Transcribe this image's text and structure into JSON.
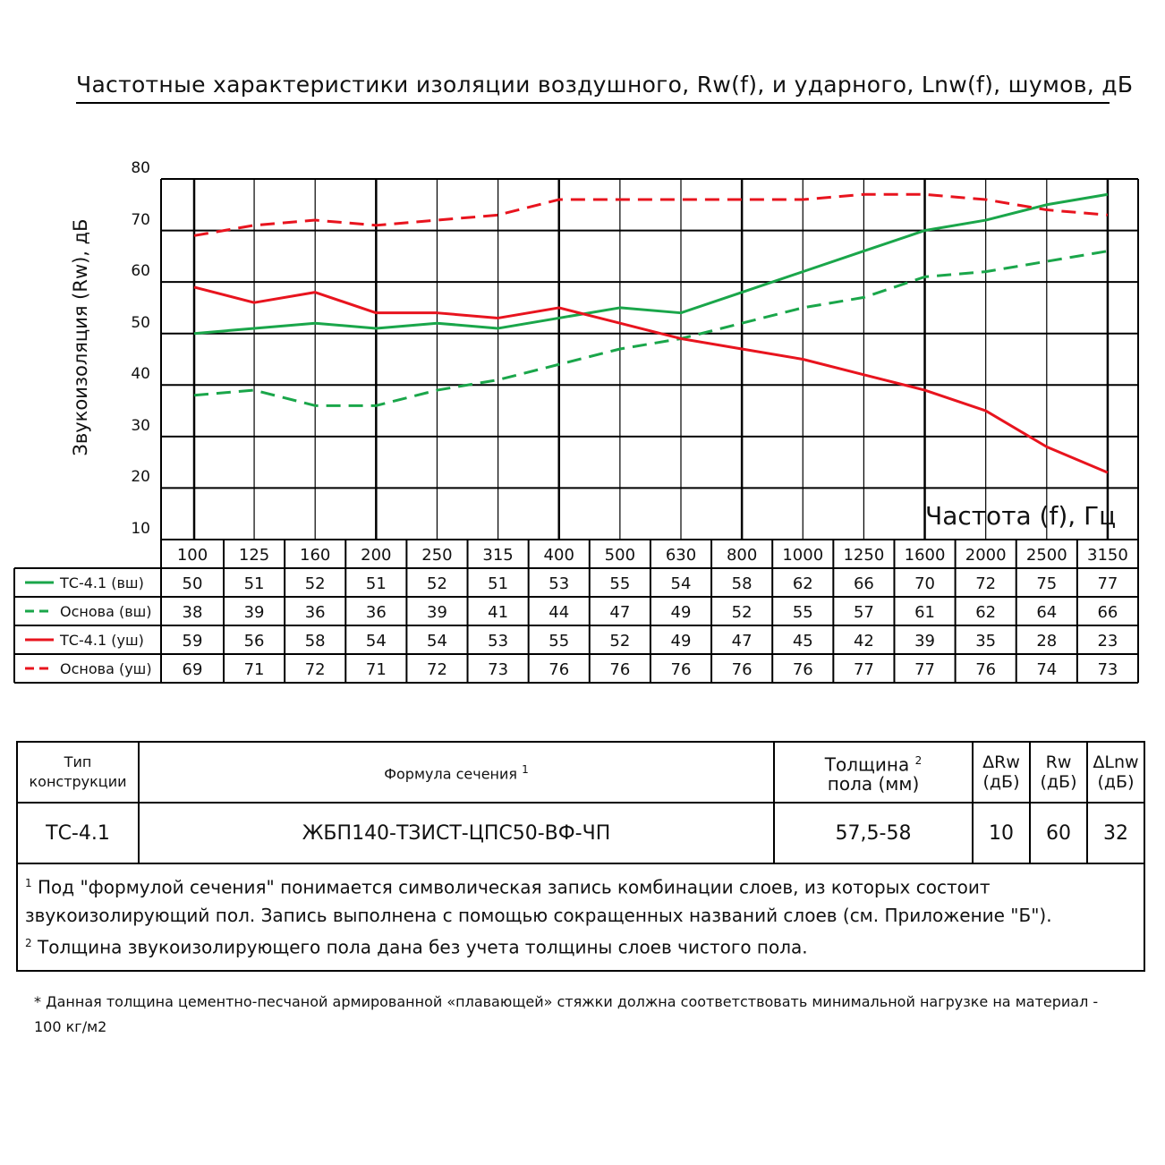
{
  "title": "Частотные характеристики изоляции воздушного, Rw(f), и ударного, Lnw(f), шумов, дБ",
  "chart_data": {
    "type": "line",
    "ylabel": "Звукоизоляция (Rw), дБ",
    "xlabel": "Частота (f), Гц",
    "ylim": [
      10,
      80
    ],
    "yticks": [
      10,
      20,
      30,
      40,
      50,
      60,
      70,
      80
    ],
    "grid": true,
    "categories": [
      "100",
      "125",
      "160",
      "200",
      "250",
      "315",
      "400",
      "500",
      "630",
      "800",
      "1000",
      "1250",
      "1600",
      "2000",
      "2500",
      "3150"
    ],
    "series": [
      {
        "name": "ТС-4.1 (вш)",
        "color": "#1aa64a",
        "dash": false,
        "values": [
          50,
          51,
          52,
          51,
          52,
          51,
          53,
          55,
          54,
          58,
          62,
          66,
          70,
          72,
          75,
          77
        ]
      },
      {
        "name": "Основа (вш)",
        "color": "#1aa64a",
        "dash": true,
        "values": [
          38,
          39,
          36,
          36,
          39,
          41,
          44,
          47,
          49,
          52,
          55,
          57,
          61,
          62,
          64,
          66
        ]
      },
      {
        "name": "ТС-4.1 (уш)",
        "color": "#e8141e",
        "dash": false,
        "values": [
          59,
          56,
          58,
          54,
          54,
          53,
          55,
          52,
          49,
          47,
          45,
          42,
          39,
          35,
          28,
          23
        ]
      },
      {
        "name": "Основа (уш)",
        "color": "#e8141e",
        "dash": true,
        "values": [
          69,
          71,
          72,
          71,
          72,
          73,
          76,
          76,
          76,
          76,
          76,
          77,
          77,
          76,
          74,
          73
        ]
      }
    ]
  },
  "info_table": {
    "headers": {
      "type": "Тип конструкции",
      "formula": "Формула сечения",
      "formula_note": "1",
      "thickness": "Толщина",
      "thickness_note": "2",
      "thickness_unit": "пола (мм)",
      "drw": "ΔRw",
      "drw_unit": "(дБ)",
      "rw": "Rw",
      "rw_unit": "(дБ)",
      "dlnw": "ΔLnw",
      "dlnw_unit": "(дБ)"
    },
    "row": {
      "type": "ТС-4.1",
      "formula": "ЖБП140-ТЗИСТ-ЦПС50-ВФ-ЧП",
      "thickness": "57,5-58",
      "drw": "10",
      "rw": "60",
      "dlnw": "32"
    },
    "notes": {
      "n1_mark": "1",
      "n1_text": "Под \"формулой сечения\" понимается символическая запись комбинации слоев, из которых состоит звукоизолирующий пол. Запись выполнена с помощью сокращенных названий слоев (см. Приложение \"Б\").",
      "n2_mark": "2",
      "n2_text": "Толщина звукоизолирующего пола дана без учета толщины слоев чистого пола."
    }
  },
  "footnote": "* Данная толщина цементно-песчаной армированной «плавающей» стяжки должна соответствовать минимальной нагрузке на материал - 100 кг/м2"
}
